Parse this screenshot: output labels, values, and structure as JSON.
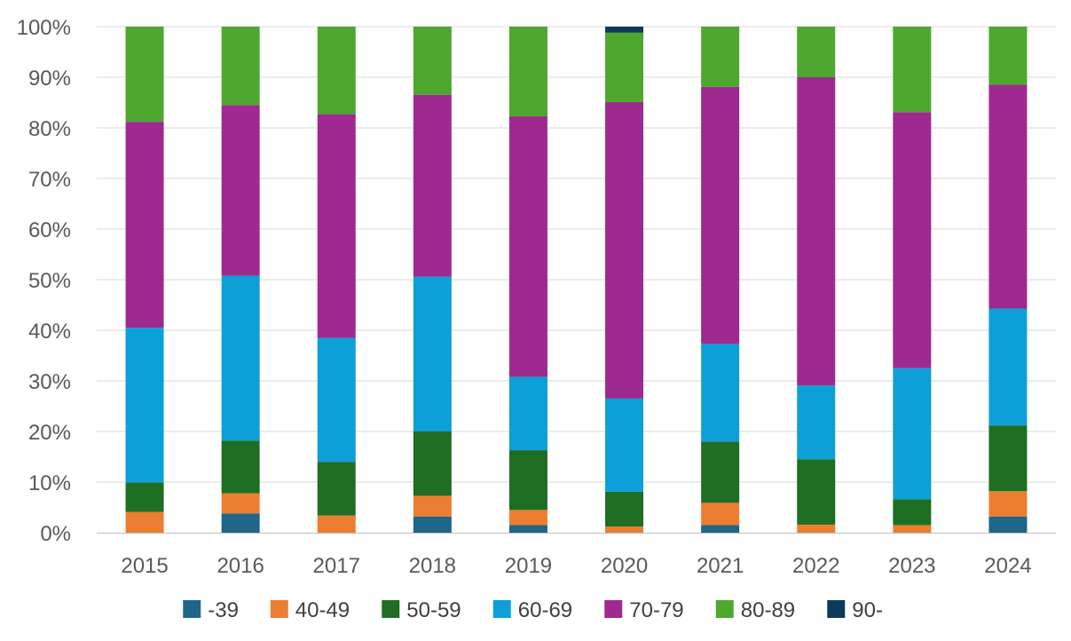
{
  "chart_data": {
    "type": "bar",
    "stacked": true,
    "percent": true,
    "categories": [
      "2015",
      "2016",
      "2017",
      "2018",
      "2019",
      "2020",
      "2021",
      "2022",
      "2023",
      "2024"
    ],
    "series": [
      {
        "name": "-39",
        "color": "#1f6689",
        "values": [
          0,
          3.8,
          0,
          3.2,
          1.5,
          0,
          1.5,
          0,
          0,
          3.2
        ]
      },
      {
        "name": "40-49",
        "color": "#ed7d31",
        "values": [
          4.1,
          4.0,
          3.4,
          4.1,
          3.0,
          1.2,
          4.4,
          1.6,
          1.5,
          5.0
        ]
      },
      {
        "name": "50-59",
        "color": "#1e6e23",
        "values": [
          5.8,
          10.4,
          10.6,
          12.7,
          11.8,
          6.9,
          12.1,
          12.9,
          5.1,
          13.0
        ]
      },
      {
        "name": "60-69",
        "color": "#0d9fd8",
        "values": [
          30.6,
          32.6,
          24.5,
          30.6,
          14.5,
          18.4,
          19.3,
          14.6,
          25.9,
          23.1
        ]
      },
      {
        "name": "70-79",
        "color": "#9e2a8f",
        "values": [
          40.7,
          33.7,
          44.2,
          35.9,
          51.5,
          58.6,
          50.8,
          60.9,
          50.6,
          44.2
        ]
      },
      {
        "name": "80-89",
        "color": "#4ea72e",
        "values": [
          18.8,
          15.5,
          17.3,
          13.5,
          17.7,
          13.7,
          11.9,
          10.0,
          16.9,
          11.5
        ]
      },
      {
        "name": "90-",
        "color": "#0e3a59",
        "values": [
          0,
          0,
          0,
          0,
          0,
          1.2,
          0,
          0,
          0,
          0
        ]
      }
    ],
    "ylim": [
      0,
      100
    ],
    "yticks": [
      "0%",
      "10%",
      "20%",
      "30%",
      "40%",
      "50%",
      "60%",
      "70%",
      "80%",
      "90%",
      "100%"
    ],
    "grid": true,
    "legend_position": "bottom"
  },
  "colors": {
    "grid": "#d9d9d9",
    "axis": "#bfbfbf",
    "tick_text": "#595959",
    "legend_text": "#404040"
  }
}
